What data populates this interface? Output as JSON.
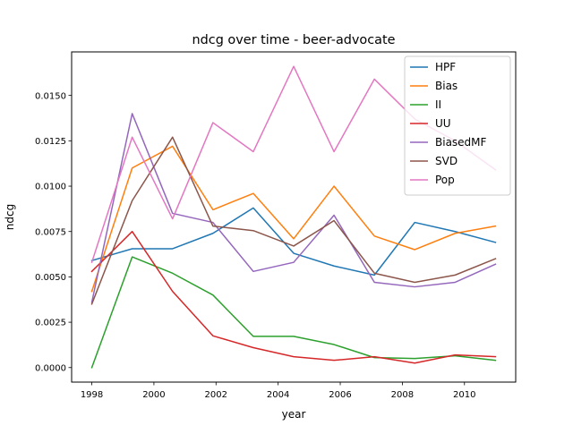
{
  "chart_data": {
    "type": "line",
    "title": "ndcg over time - beer-advocate",
    "xlabel": "year",
    "ylabel": "ndcg",
    "xlim": [
      1997.35,
      2011.65
    ],
    "ylim": [
      -0.0008,
      0.0174
    ],
    "xticks": [
      1998,
      2000,
      2002,
      2004,
      2006,
      2008,
      2010
    ],
    "yticks": [
      0.0,
      0.0025,
      0.005,
      0.0075,
      0.01,
      0.0125,
      0.015
    ],
    "ytick_labels": [
      "0.0000",
      "0.0025",
      "0.0050",
      "0.0075",
      "0.0100",
      "0.0125",
      "0.0150"
    ],
    "grid": false,
    "legend_position": "top-right",
    "x": [
      1998.0,
      1999.3,
      2000.6,
      2001.9,
      2003.2,
      2004.5,
      2005.8,
      2007.1,
      2008.4,
      2009.7,
      2011.0
    ],
    "series": [
      {
        "name": "HPF",
        "color": "#1f77b4",
        "values": [
          0.0059,
          0.00655,
          0.00655,
          0.0074,
          0.0088,
          0.0063,
          0.0056,
          0.0051,
          0.008,
          0.0075,
          0.0069
        ]
      },
      {
        "name": "Bias",
        "color": "#ff7f0e",
        "values": [
          0.0042,
          0.011,
          0.0122,
          0.0087,
          0.0096,
          0.0071,
          0.01,
          0.00725,
          0.0065,
          0.0074,
          0.0078
        ]
      },
      {
        "name": "II",
        "color": "#2ca02c",
        "values": [
          0.0,
          0.0061,
          0.0052,
          0.004,
          0.00172,
          0.00172,
          0.00127,
          0.00055,
          0.0005,
          0.00065,
          0.0004
        ]
      },
      {
        "name": "UU",
        "color": "#d62728",
        "values": [
          0.0053,
          0.0075,
          0.0042,
          0.00175,
          0.0011,
          0.0006,
          0.0004,
          0.0006,
          0.00025,
          0.0007,
          0.0006
        ]
      },
      {
        "name": "BiasedMF",
        "color": "#9467bd",
        "values": [
          0.0036,
          0.014,
          0.0085,
          0.008,
          0.0053,
          0.0058,
          0.0084,
          0.0047,
          0.00445,
          0.0047,
          0.0057
        ]
      },
      {
        "name": "SVD",
        "color": "#8c564b",
        "values": [
          0.0035,
          0.0092,
          0.0127,
          0.0078,
          0.00755,
          0.0067,
          0.0081,
          0.0052,
          0.0047,
          0.0051,
          0.006
        ]
      },
      {
        "name": "Pop",
        "color": "#e377c2",
        "values": [
          0.0058,
          0.0127,
          0.0082,
          0.0135,
          0.0119,
          0.0166,
          0.0119,
          0.0159,
          0.0137,
          0.0125,
          0.0109
        ]
      }
    ]
  }
}
